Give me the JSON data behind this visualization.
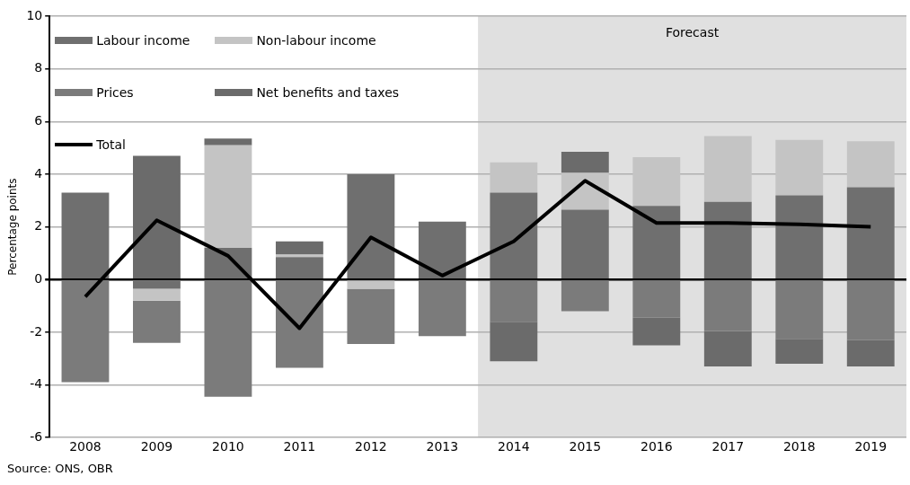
{
  "chart_data": {
    "type": "bar",
    "stacked": true,
    "categories": [
      "2008",
      "2009",
      "2010",
      "2011",
      "2012",
      "2013",
      "2014",
      "2015",
      "2016",
      "2017",
      "2018",
      "2019"
    ],
    "series": [
      {
        "name": "Labour income",
        "color": "#6f6f6f",
        "values": [
          3.3,
          -0.35,
          1.2,
          0.85,
          4.0,
          2.2,
          3.3,
          2.65,
          2.8,
          2.95,
          3.2,
          3.5
        ]
      },
      {
        "name": "Non-labour income",
        "color": "#c4c4c4",
        "values": [
          null,
          -0.45,
          3.9,
          0.1,
          -0.35,
          null,
          1.15,
          1.4,
          1.85,
          2.5,
          2.1,
          1.75
        ]
      },
      {
        "name": "Prices",
        "color": "#7b7b7b",
        "values": [
          -3.9,
          -1.6,
          -4.45,
          -3.35,
          -2.1,
          -2.15,
          -1.6,
          -1.2,
          -1.45,
          -1.95,
          -2.25,
          -2.3
        ]
      },
      {
        "name": "Net benefits and taxes",
        "color": "#6b6b6b",
        "values": [
          null,
          4.7,
          0.25,
          0.5,
          null,
          null,
          -1.5,
          0.8,
          -1.05,
          -1.35,
          -0.95,
          -1.0
        ]
      },
      {
        "name": "Total",
        "type": "line",
        "color": "#000000",
        "values": [
          -0.65,
          2.25,
          0.9,
          -1.85,
          1.6,
          0.15,
          1.45,
          3.75,
          2.15,
          2.15,
          2.1,
          2.0
        ]
      }
    ],
    "ylabel": "Percentage points",
    "ylim": [
      -6,
      10
    ],
    "yticks": [
      -6,
      -4,
      -2,
      0,
      2,
      4,
      6,
      8,
      10
    ],
    "grid": "y",
    "legend": "top left",
    "marker": "none",
    "line_style": "solid",
    "bands": [
      {
        "axis": "x",
        "from": "2014",
        "to": "2019",
        "label": "Forecast",
        "color": "#e0e0e0"
      }
    ],
    "annotations": [
      "Source: ONS, OBR"
    ]
  }
}
